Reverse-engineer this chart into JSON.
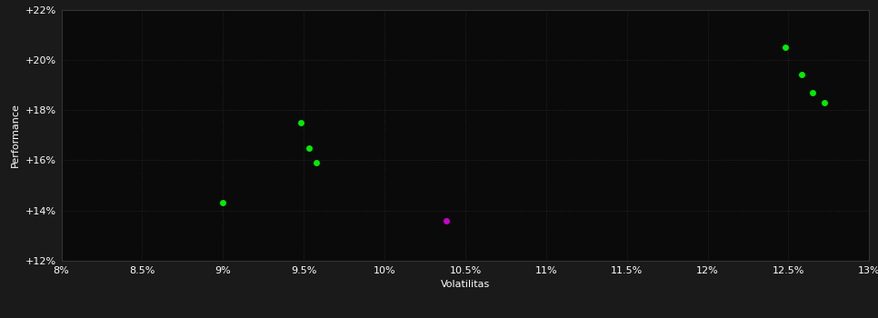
{
  "background_color": "#1a1a1a",
  "plot_bg_color": "#0a0a0a",
  "grid_color": "#333333",
  "text_color": "#ffffff",
  "xlabel": "Volatilitas",
  "ylabel": "Performance",
  "xlim": [
    0.08,
    0.13
  ],
  "ylim": [
    0.12,
    0.22
  ],
  "xticks": [
    0.08,
    0.085,
    0.09,
    0.095,
    0.1,
    0.105,
    0.11,
    0.115,
    0.12,
    0.125,
    0.13
  ],
  "xtick_labels": [
    "8%",
    "8.5%",
    "9%",
    "9.5%",
    "10%",
    "10.5%",
    "11%",
    "11.5%",
    "12%",
    "12.5%",
    "13%"
  ],
  "yticks": [
    0.12,
    0.14,
    0.16,
    0.18,
    0.2,
    0.22
  ],
  "ytick_labels": [
    "+12%",
    "+14%",
    "+16%",
    "+18%",
    "+20%",
    "+22%"
  ],
  "green_points": [
    [
      0.09,
      0.143
    ],
    [
      0.0948,
      0.175
    ],
    [
      0.0953,
      0.165
    ],
    [
      0.0958,
      0.159
    ],
    [
      0.1248,
      0.205
    ],
    [
      0.1258,
      0.194
    ],
    [
      0.1265,
      0.187
    ],
    [
      0.1272,
      0.183
    ]
  ],
  "magenta_points": [
    [
      0.1038,
      0.136
    ]
  ],
  "green_color": "#00ee00",
  "magenta_color": "#cc00cc",
  "marker_size": 5,
  "grid_linestyle": ":",
  "grid_linewidth": 0.6,
  "grid_alpha": 0.8,
  "xlabel_fontsize": 8,
  "ylabel_fontsize": 8,
  "tick_fontsize": 8
}
